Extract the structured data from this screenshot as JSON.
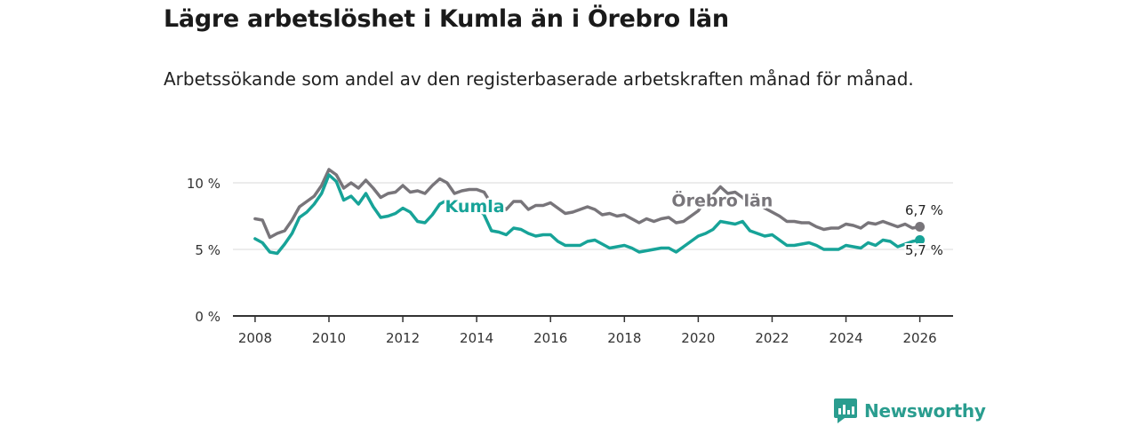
{
  "title": "Lägre arbetslöshet i Kumla än i Örebro län",
  "subtitle": "Arbetssökande som andel av den registerbaserade arbetskraften månad för månad.",
  "brand": "Newsworthy",
  "colors": {
    "kumla": "#17a398",
    "orebro": "#78757a",
    "axis": "#333333",
    "grid": "#d9d9d9"
  },
  "chart_data": {
    "type": "line",
    "title": "Lägre arbetslöshet i Kumla än i Örebro län",
    "xlabel": "",
    "ylabel": "",
    "xlim": [
      2007.4,
      2026.9
    ],
    "ylim": [
      0,
      10
    ],
    "x_ticks": [
      2008,
      2010,
      2012,
      2014,
      2016,
      2018,
      2020,
      2022,
      2024,
      2026
    ],
    "x_tick_labels": [
      "2008",
      "2010",
      "2012",
      "2014",
      "2016",
      "2018",
      "2020",
      "2022",
      "2024",
      "2026"
    ],
    "y_ticks": [
      0,
      5,
      10
    ],
    "y_tick_labels": [
      "0 %",
      "5 %",
      "10 %"
    ],
    "grid": true,
    "series": [
      {
        "name": "Örebro län",
        "label": "Örebro län",
        "end_label": "6,7 %",
        "end_value": 6.7,
        "points": [
          [
            2008.0,
            7.3
          ],
          [
            2008.2,
            7.2
          ],
          [
            2008.4,
            5.9
          ],
          [
            2008.6,
            6.2
          ],
          [
            2008.8,
            6.4
          ],
          [
            2009.0,
            7.2
          ],
          [
            2009.2,
            8.2
          ],
          [
            2009.4,
            8.6
          ],
          [
            2009.6,
            9.0
          ],
          [
            2009.8,
            9.8
          ],
          [
            2010.0,
            11.0
          ],
          [
            2010.2,
            10.6
          ],
          [
            2010.4,
            9.6
          ],
          [
            2010.6,
            10.0
          ],
          [
            2010.8,
            9.6
          ],
          [
            2011.0,
            10.2
          ],
          [
            2011.2,
            9.6
          ],
          [
            2011.4,
            8.9
          ],
          [
            2011.6,
            9.2
          ],
          [
            2011.8,
            9.3
          ],
          [
            2012.0,
            9.8
          ],
          [
            2012.2,
            9.3
          ],
          [
            2012.4,
            9.4
          ],
          [
            2012.6,
            9.2
          ],
          [
            2012.8,
            9.8
          ],
          [
            2013.0,
            10.3
          ],
          [
            2013.2,
            10.0
          ],
          [
            2013.4,
            9.2
          ],
          [
            2013.6,
            9.4
          ],
          [
            2013.8,
            9.5
          ],
          [
            2014.0,
            9.5
          ],
          [
            2014.2,
            9.3
          ],
          [
            2014.4,
            8.4
          ],
          [
            2014.6,
            8.5
          ],
          [
            2014.8,
            8.0
          ],
          [
            2015.0,
            8.6
          ],
          [
            2015.2,
            8.6
          ],
          [
            2015.4,
            8.0
          ],
          [
            2015.6,
            8.3
          ],
          [
            2015.8,
            8.3
          ],
          [
            2016.0,
            8.5
          ],
          [
            2016.2,
            8.1
          ],
          [
            2016.4,
            7.7
          ],
          [
            2016.6,
            7.8
          ],
          [
            2016.8,
            8.0
          ],
          [
            2017.0,
            8.2
          ],
          [
            2017.2,
            8.0
          ],
          [
            2017.4,
            7.6
          ],
          [
            2017.6,
            7.7
          ],
          [
            2017.8,
            7.5
          ],
          [
            2018.0,
            7.6
          ],
          [
            2018.2,
            7.3
          ],
          [
            2018.4,
            7.0
          ],
          [
            2018.6,
            7.3
          ],
          [
            2018.8,
            7.1
          ],
          [
            2019.0,
            7.3
          ],
          [
            2019.2,
            7.4
          ],
          [
            2019.4,
            7.0
          ],
          [
            2019.6,
            7.1
          ],
          [
            2019.8,
            7.5
          ],
          [
            2020.0,
            7.9
          ],
          [
            2020.2,
            8.7
          ],
          [
            2020.4,
            9.1
          ],
          [
            2020.6,
            9.7
          ],
          [
            2020.8,
            9.2
          ],
          [
            2021.0,
            9.3
          ],
          [
            2021.2,
            8.9
          ],
          [
            2021.4,
            8.3
          ],
          [
            2021.6,
            8.5
          ],
          [
            2021.8,
            8.1
          ],
          [
            2022.0,
            7.8
          ],
          [
            2022.2,
            7.5
          ],
          [
            2022.4,
            7.1
          ],
          [
            2022.6,
            7.1
          ],
          [
            2022.8,
            7.0
          ],
          [
            2023.0,
            7.0
          ],
          [
            2023.2,
            6.7
          ],
          [
            2023.4,
            6.5
          ],
          [
            2023.6,
            6.6
          ],
          [
            2023.8,
            6.6
          ],
          [
            2024.0,
            6.9
          ],
          [
            2024.2,
            6.8
          ],
          [
            2024.4,
            6.6
          ],
          [
            2024.6,
            7.0
          ],
          [
            2024.8,
            6.9
          ],
          [
            2025.0,
            7.1
          ],
          [
            2025.2,
            6.9
          ],
          [
            2025.4,
            6.7
          ],
          [
            2025.6,
            6.9
          ],
          [
            2025.8,
            6.6
          ],
          [
            2026.0,
            6.7
          ]
        ]
      },
      {
        "name": "Kumla",
        "label": "Kumla",
        "end_label": "5,7 %",
        "end_value": 5.7,
        "points": [
          [
            2008.0,
            5.8
          ],
          [
            2008.2,
            5.5
          ],
          [
            2008.4,
            4.8
          ],
          [
            2008.6,
            4.7
          ],
          [
            2008.8,
            5.4
          ],
          [
            2009.0,
            6.2
          ],
          [
            2009.2,
            7.4
          ],
          [
            2009.4,
            7.8
          ],
          [
            2009.6,
            8.4
          ],
          [
            2009.8,
            9.2
          ],
          [
            2010.0,
            10.6
          ],
          [
            2010.2,
            10.1
          ],
          [
            2010.4,
            8.7
          ],
          [
            2010.6,
            9.0
          ],
          [
            2010.8,
            8.4
          ],
          [
            2011.0,
            9.2
          ],
          [
            2011.2,
            8.2
          ],
          [
            2011.4,
            7.4
          ],
          [
            2011.6,
            7.5
          ],
          [
            2011.8,
            7.7
          ],
          [
            2012.0,
            8.1
          ],
          [
            2012.2,
            7.8
          ],
          [
            2012.4,
            7.1
          ],
          [
            2012.6,
            7.0
          ],
          [
            2012.8,
            7.6
          ],
          [
            2013.0,
            8.4
          ],
          [
            2013.2,
            8.7
          ],
          [
            2013.4,
            7.9
          ],
          [
            2013.6,
            8.0
          ],
          [
            2013.8,
            8.2
          ],
          [
            2014.0,
            8.2
          ],
          [
            2014.2,
            7.6
          ],
          [
            2014.4,
            6.4
          ],
          [
            2014.6,
            6.3
          ],
          [
            2014.8,
            6.1
          ],
          [
            2015.0,
            6.6
          ],
          [
            2015.2,
            6.5
          ],
          [
            2015.4,
            6.2
          ],
          [
            2015.6,
            6.0
          ],
          [
            2015.8,
            6.1
          ],
          [
            2016.0,
            6.1
          ],
          [
            2016.2,
            5.6
          ],
          [
            2016.4,
            5.3
          ],
          [
            2016.6,
            5.3
          ],
          [
            2016.8,
            5.3
          ],
          [
            2017.0,
            5.6
          ],
          [
            2017.2,
            5.7
          ],
          [
            2017.4,
            5.4
          ],
          [
            2017.6,
            5.1
          ],
          [
            2017.8,
            5.2
          ],
          [
            2018.0,
            5.3
          ],
          [
            2018.2,
            5.1
          ],
          [
            2018.4,
            4.8
          ],
          [
            2018.6,
            4.9
          ],
          [
            2018.8,
            5.0
          ],
          [
            2019.0,
            5.1
          ],
          [
            2019.2,
            5.1
          ],
          [
            2019.4,
            4.8
          ],
          [
            2019.6,
            5.2
          ],
          [
            2019.8,
            5.6
          ],
          [
            2020.0,
            6.0
          ],
          [
            2020.2,
            6.2
          ],
          [
            2020.4,
            6.5
          ],
          [
            2020.6,
            7.1
          ],
          [
            2020.8,
            7.0
          ],
          [
            2021.0,
            6.9
          ],
          [
            2021.2,
            7.1
          ],
          [
            2021.4,
            6.4
          ],
          [
            2021.6,
            6.2
          ],
          [
            2021.8,
            6.0
          ],
          [
            2022.0,
            6.1
          ],
          [
            2022.2,
            5.7
          ],
          [
            2022.4,
            5.3
          ],
          [
            2022.6,
            5.3
          ],
          [
            2022.8,
            5.4
          ],
          [
            2023.0,
            5.5
          ],
          [
            2023.2,
            5.3
          ],
          [
            2023.4,
            5.0
          ],
          [
            2023.6,
            5.0
          ],
          [
            2023.8,
            5.0
          ],
          [
            2024.0,
            5.3
          ],
          [
            2024.2,
            5.2
          ],
          [
            2024.4,
            5.1
          ],
          [
            2024.6,
            5.5
          ],
          [
            2024.8,
            5.3
          ],
          [
            2025.0,
            5.7
          ],
          [
            2025.2,
            5.6
          ],
          [
            2025.4,
            5.2
          ],
          [
            2025.6,
            5.4
          ],
          [
            2025.8,
            5.6
          ],
          [
            2026.0,
            5.7
          ]
        ]
      }
    ]
  }
}
